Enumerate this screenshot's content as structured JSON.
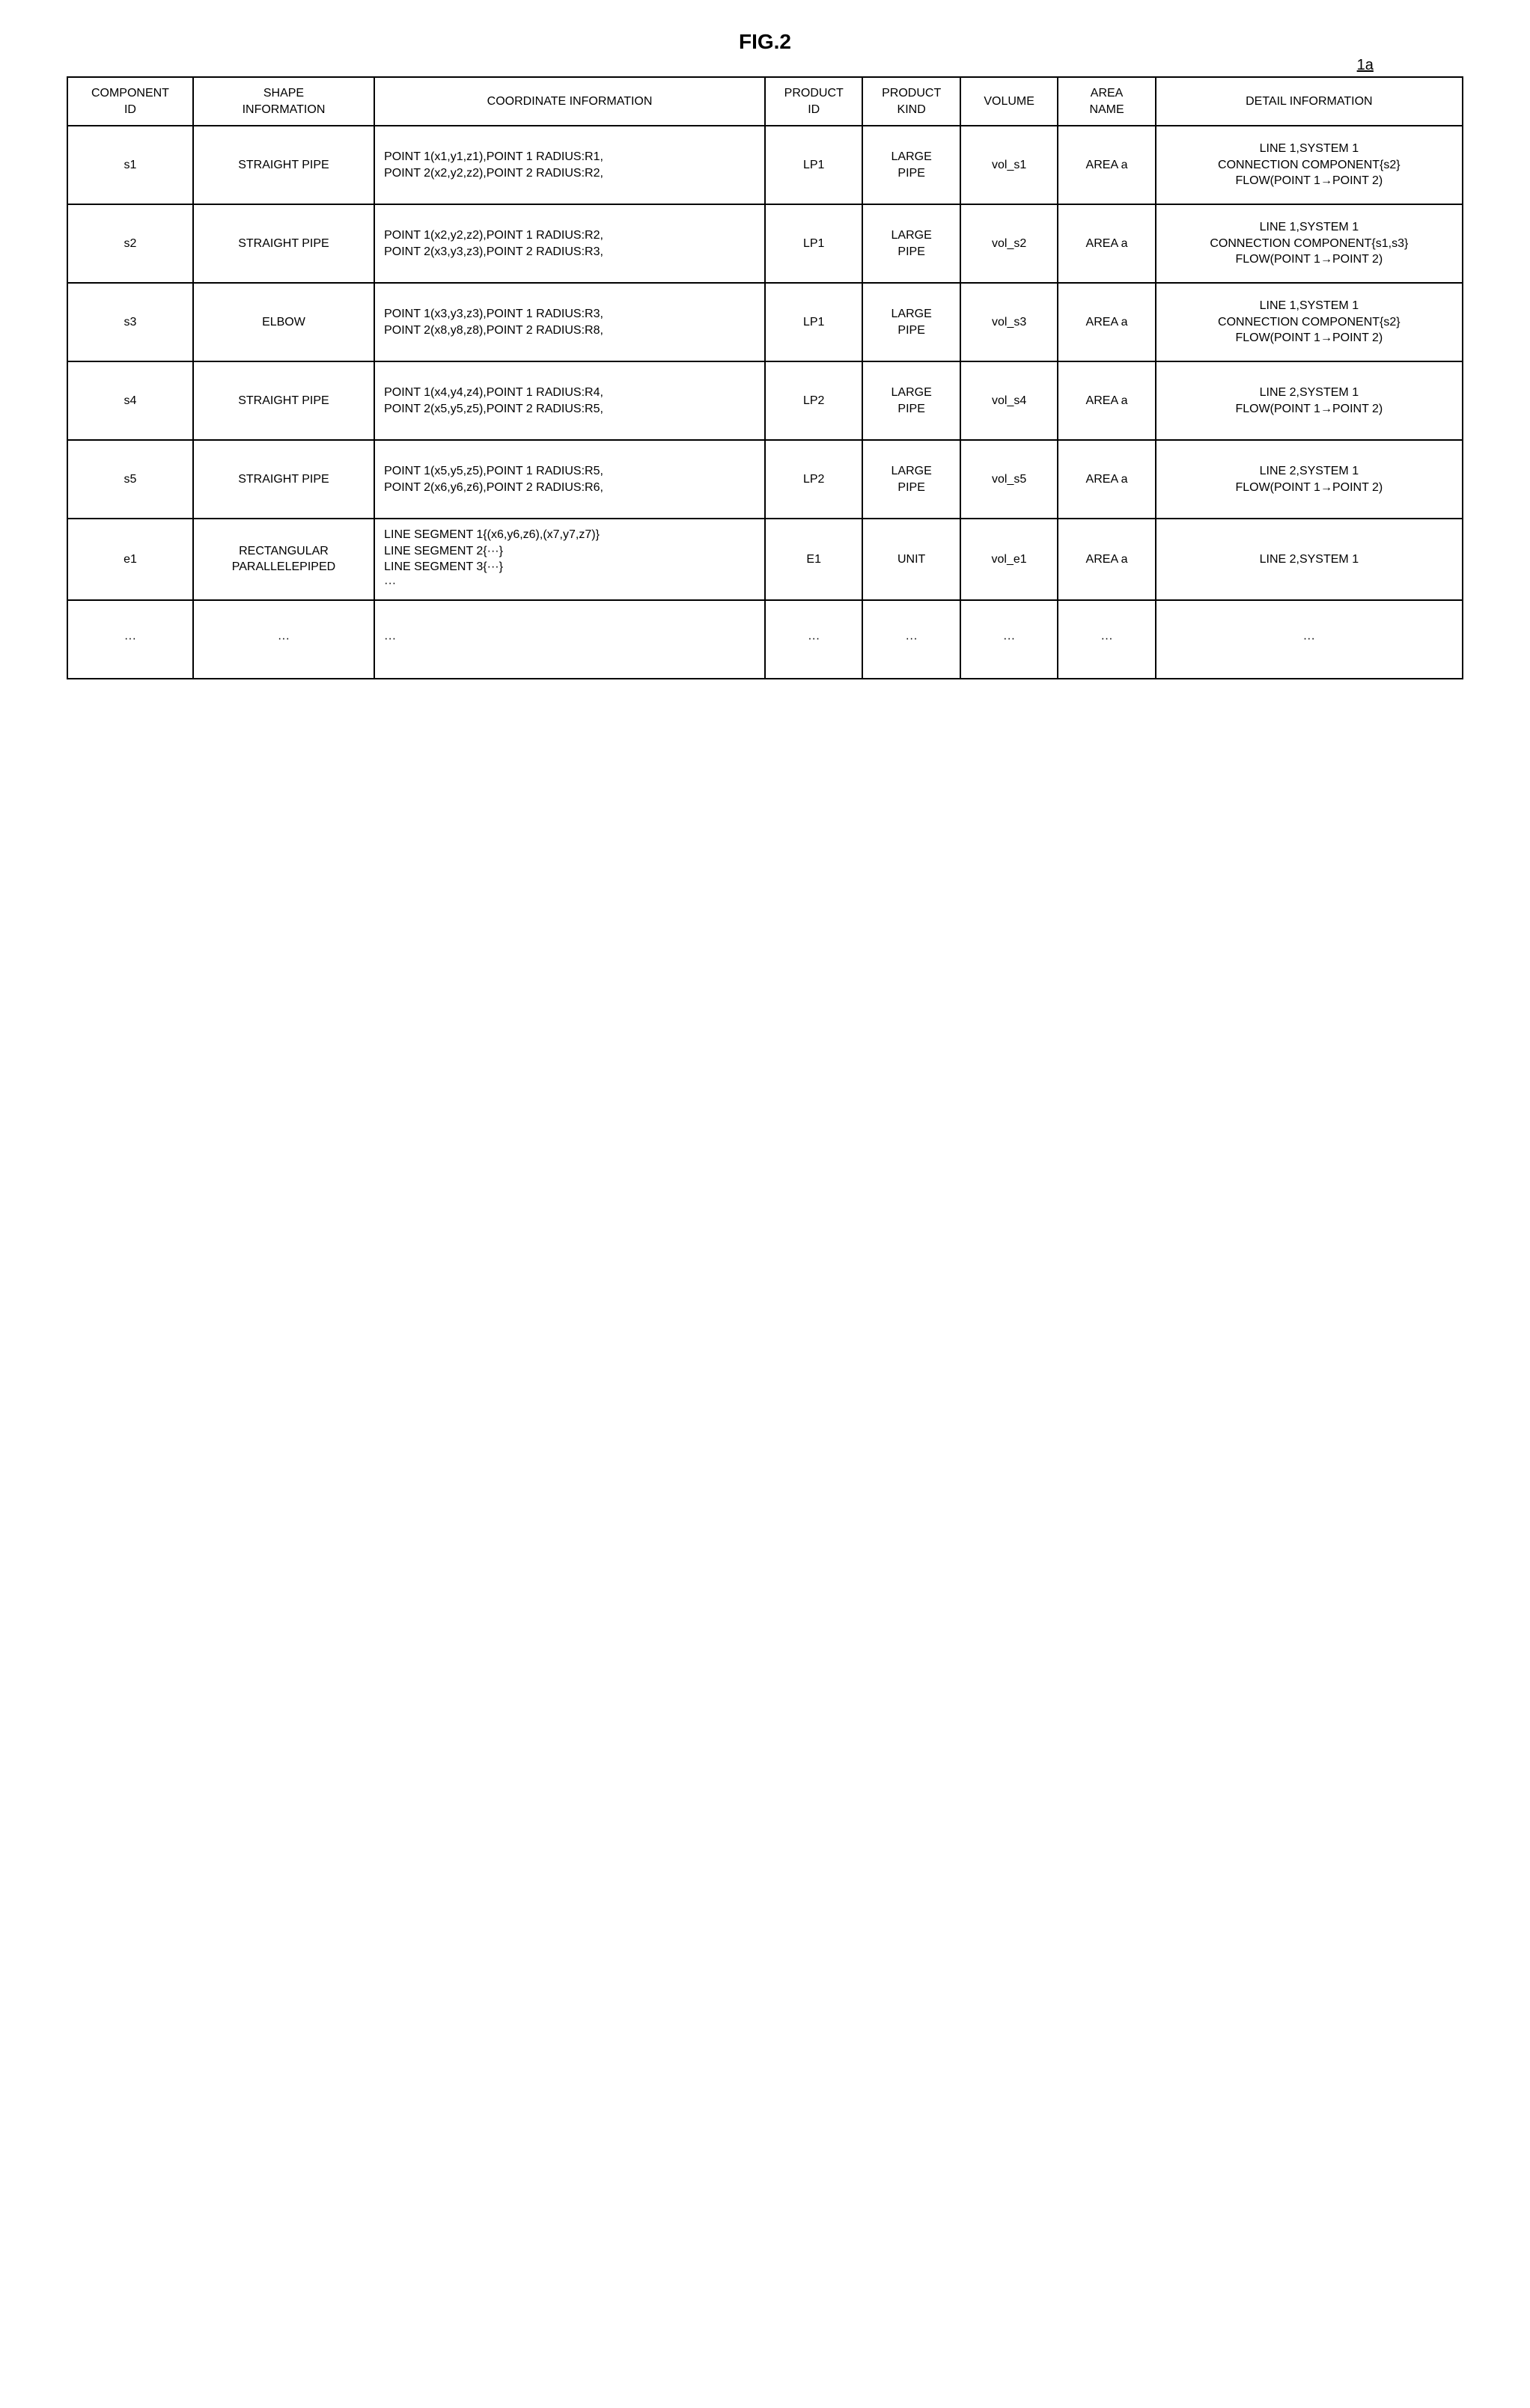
{
  "figure": {
    "title": "FIG.2",
    "callout": "1a"
  },
  "table": {
    "headers": {
      "component_id": "COMPONENT\nID",
      "shape_info": "SHAPE\nINFORMATION",
      "coord_info": "COORDINATE INFORMATION",
      "product_id": "PRODUCT\nID",
      "product_kind": "PRODUCT\nKIND",
      "volume": "VOLUME",
      "area_name": "AREA\nNAME",
      "detail_info": "DETAIL INFORMATION"
    },
    "rows": [
      {
        "component_id": "s1",
        "shape_info": "STRAIGHT PIPE",
        "coord_info": "POINT 1(x1,y1,z1),POINT 1 RADIUS:R1,\nPOINT 2(x2,y2,z2),POINT 2 RADIUS:R2,",
        "product_id": "LP1",
        "product_kind": "LARGE\nPIPE",
        "volume": "vol_s1",
        "area_name": "AREA a",
        "detail_info": "LINE 1,SYSTEM 1\nCONNECTION COMPONENT{s2}\nFLOW(POINT 1→POINT 2)"
      },
      {
        "component_id": "s2",
        "shape_info": "STRAIGHT PIPE",
        "coord_info": "POINT 1(x2,y2,z2),POINT 1 RADIUS:R2,\nPOINT 2(x3,y3,z3),POINT 2 RADIUS:R3,",
        "product_id": "LP1",
        "product_kind": "LARGE\nPIPE",
        "volume": "vol_s2",
        "area_name": "AREA a",
        "detail_info": "LINE 1,SYSTEM 1\nCONNECTION COMPONENT{s1,s3}\nFLOW(POINT 1→POINT 2)"
      },
      {
        "component_id": "s3",
        "shape_info": "ELBOW",
        "coord_info": "POINT 1(x3,y3,z3),POINT 1 RADIUS:R3,\nPOINT 2(x8,y8,z8),POINT 2 RADIUS:R8,",
        "product_id": "LP1",
        "product_kind": "LARGE\nPIPE",
        "volume": "vol_s3",
        "area_name": "AREA a",
        "detail_info": "LINE 1,SYSTEM 1\nCONNECTION COMPONENT{s2}\nFLOW(POINT 1→POINT 2)"
      },
      {
        "component_id": "s4",
        "shape_info": "STRAIGHT PIPE",
        "coord_info": "POINT 1(x4,y4,z4),POINT 1 RADIUS:R4,\nPOINT 2(x5,y5,z5),POINT 2 RADIUS:R5,",
        "product_id": "LP2",
        "product_kind": "LARGE\nPIPE",
        "volume": "vol_s4",
        "area_name": "AREA a",
        "detail_info": "LINE 2,SYSTEM 1\nFLOW(POINT 1→POINT 2)"
      },
      {
        "component_id": "s5",
        "shape_info": "STRAIGHT PIPE",
        "coord_info": "POINT 1(x5,y5,z5),POINT 1 RADIUS:R5,\nPOINT 2(x6,y6,z6),POINT 2 RADIUS:R6,",
        "product_id": "LP2",
        "product_kind": "LARGE\nPIPE",
        "volume": "vol_s5",
        "area_name": "AREA a",
        "detail_info": "LINE 2,SYSTEM 1\nFLOW(POINT 1→POINT 2)"
      },
      {
        "component_id": "e1",
        "shape_info": "RECTANGULAR\nPARALLELEPIPED",
        "coord_info": "LINE SEGMENT 1{(x6,y6,z6),(x7,y7,z7)}\nLINE SEGMENT 2{···}\nLINE SEGMENT 3{···}\n···",
        "product_id": "E1",
        "product_kind": "UNIT",
        "volume": "vol_e1",
        "area_name": "AREA a",
        "detail_info": "LINE 2,SYSTEM 1"
      },
      {
        "component_id": "···",
        "shape_info": "···",
        "coord_info": "···",
        "product_id": "···",
        "product_kind": "···",
        "volume": "···",
        "area_name": "···",
        "detail_info": "···"
      }
    ]
  },
  "style": {
    "border_color": "#000000",
    "background_color": "#ffffff",
    "text_color": "#000000",
    "title_fontsize": 28,
    "cell_fontsize": 16,
    "border_width": 2
  }
}
